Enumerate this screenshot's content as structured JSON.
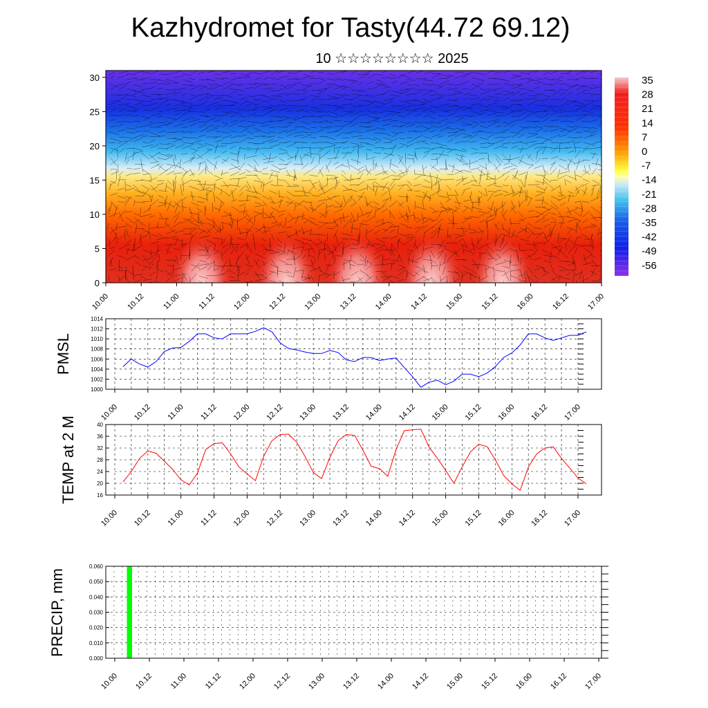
{
  "title": "Kazhydromet for Tasty(44.72 69.12)",
  "subtitle": "10 ☆☆☆☆☆☆☆☆ 2025",
  "time_labels": [
    "10.00",
    "10.12",
    "11.00",
    "11.12",
    "12.00",
    "12.12",
    "13.00",
    "13.12",
    "14.00",
    "14.12",
    "15.00",
    "15.12",
    "16.00",
    "16.12",
    "17.00"
  ],
  "chart_data": [
    {
      "type": "heatmap",
      "name": "cross-section",
      "x_ticks": [
        "10.00",
        "10.12",
        "11.00",
        "11.12",
        "12.00",
        "12.12",
        "13.00",
        "13.12",
        "14.00",
        "14.12",
        "15.00",
        "15.12",
        "16.00",
        "16.12",
        "17.00"
      ],
      "y_ticks": [
        0,
        5,
        10,
        15,
        20,
        25,
        30
      ],
      "ylim": [
        0,
        31
      ],
      "colorbar_labels": [
        "35",
        "28",
        "21",
        "14",
        "7",
        "0",
        "-7",
        "-14",
        "-21",
        "-28",
        "-35",
        "-42",
        "-49",
        "-56"
      ],
      "colorbar_range": [
        -60,
        38
      ],
      "overlay": "wind vectors"
    },
    {
      "type": "line",
      "ylabel": "PMSL",
      "ylim": [
        1000,
        1014
      ],
      "y_ticks": [
        1000,
        1002,
        1004,
        1006,
        1008,
        1010,
        1012,
        1014
      ],
      "color": "#0000ff",
      "x_start_index": 0.25,
      "x_step": 0.25,
      "values": [
        1004.5,
        1006,
        1005,
        1004.4,
        1005.5,
        1007.5,
        1008.2,
        1008.3,
        1009.5,
        1011,
        1011,
        1010.2,
        1010,
        1011,
        1011,
        1011,
        1011.5,
        1012.2,
        1011.4,
        1009.2,
        1008.1,
        1007.8,
        1007.4,
        1007.1,
        1007.1,
        1007.7,
        1007.3,
        1005.8,
        1005.5,
        1006.3,
        1006.3,
        1005.7,
        1006,
        1006.2,
        1004.3,
        1002.5,
        1000.4,
        1001.4,
        1001.8,
        1000.9,
        1001.6,
        1003,
        1003,
        1002.5,
        1003.2,
        1004.5,
        1006.3,
        1007.2,
        1008.8,
        1011,
        1011,
        1010.2,
        1009.7,
        1010.2,
        1010.7,
        1010.7,
        1011.4
      ]
    },
    {
      "type": "line",
      "ylabel": "TEMP at 2 M",
      "ylim": [
        16,
        40
      ],
      "y_ticks": [
        16,
        20,
        24,
        28,
        32,
        36,
        40
      ],
      "color": "#ff0000",
      "x_start_index": 0.25,
      "x_step": 0.25,
      "values": [
        20.5,
        24,
        28.5,
        31,
        30.2,
        27.5,
        24.7,
        21.2,
        19.4,
        23.5,
        31.5,
        33.5,
        33.8,
        30,
        25.6,
        23.2,
        20.9,
        29.2,
        34.5,
        36.6,
        36.7,
        34,
        29.1,
        23.7,
        21.6,
        28.8,
        34.5,
        36.6,
        36.3,
        31.3,
        25.8,
        25,
        22.4,
        31.5,
        37.9,
        38.2,
        38.4,
        32.3,
        28.5,
        24.4,
        20,
        25.6,
        30.7,
        33.3,
        32.5,
        28,
        22.7,
        19.8,
        17.6,
        25.5,
        30,
        32,
        32.4,
        28.5,
        25.2,
        21.8,
        19.8
      ]
    },
    {
      "type": "bar",
      "ylabel": "PRECIP, mm",
      "ylim": [
        0,
        0.06
      ],
      "y_ticks": [
        "0.000",
        "0.010",
        "0.020",
        "0.030",
        "0.040",
        "0.050",
        "0.060"
      ],
      "color": "#00ff00",
      "bars": [
        {
          "x_start": 0.35,
          "x_end": 0.5,
          "value": 0.06
        }
      ]
    }
  ]
}
